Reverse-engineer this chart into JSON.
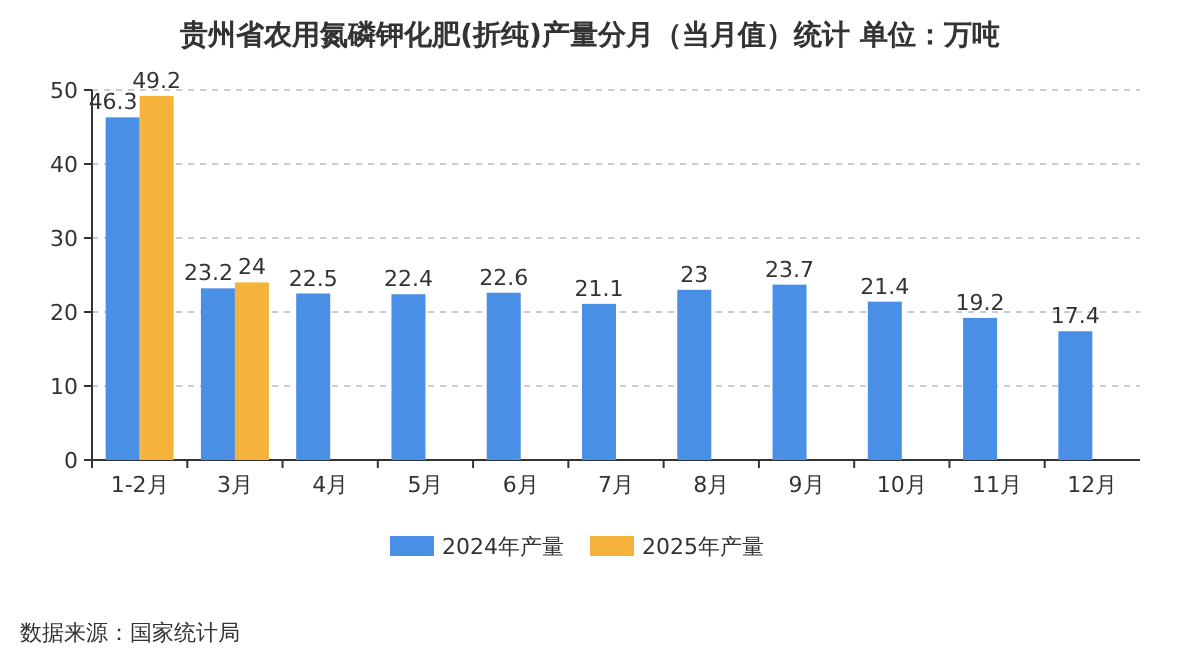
{
  "chart_data": {
    "type": "bar",
    "title": "贵州省农用氮磷钾化肥(折纯)产量分月（当月值）统计  单位：万吨",
    "categories": [
      "1-2月",
      "3月",
      "4月",
      "5月",
      "6月",
      "7月",
      "8月",
      "9月",
      "10月",
      "11月",
      "12月"
    ],
    "series": [
      {
        "name": "2024年产量",
        "color": "#4a8fe6",
        "values": [
          46.3,
          23.2,
          22.5,
          22.4,
          22.6,
          21.1,
          23,
          23.7,
          21.4,
          19.2,
          17.4
        ]
      },
      {
        "name": "2025年产量",
        "color": "#f6b33c",
        "values": [
          49.2,
          24,
          null,
          null,
          null,
          null,
          null,
          null,
          null,
          null,
          null
        ]
      }
    ],
    "ylim": [
      0,
      50
    ],
    "yticks": [
      0,
      10,
      20,
      30,
      40,
      50
    ],
    "grid": "y",
    "legend": "bottom",
    "data_labels": true,
    "annotations": [
      "数据来源：国家统计局"
    ]
  }
}
